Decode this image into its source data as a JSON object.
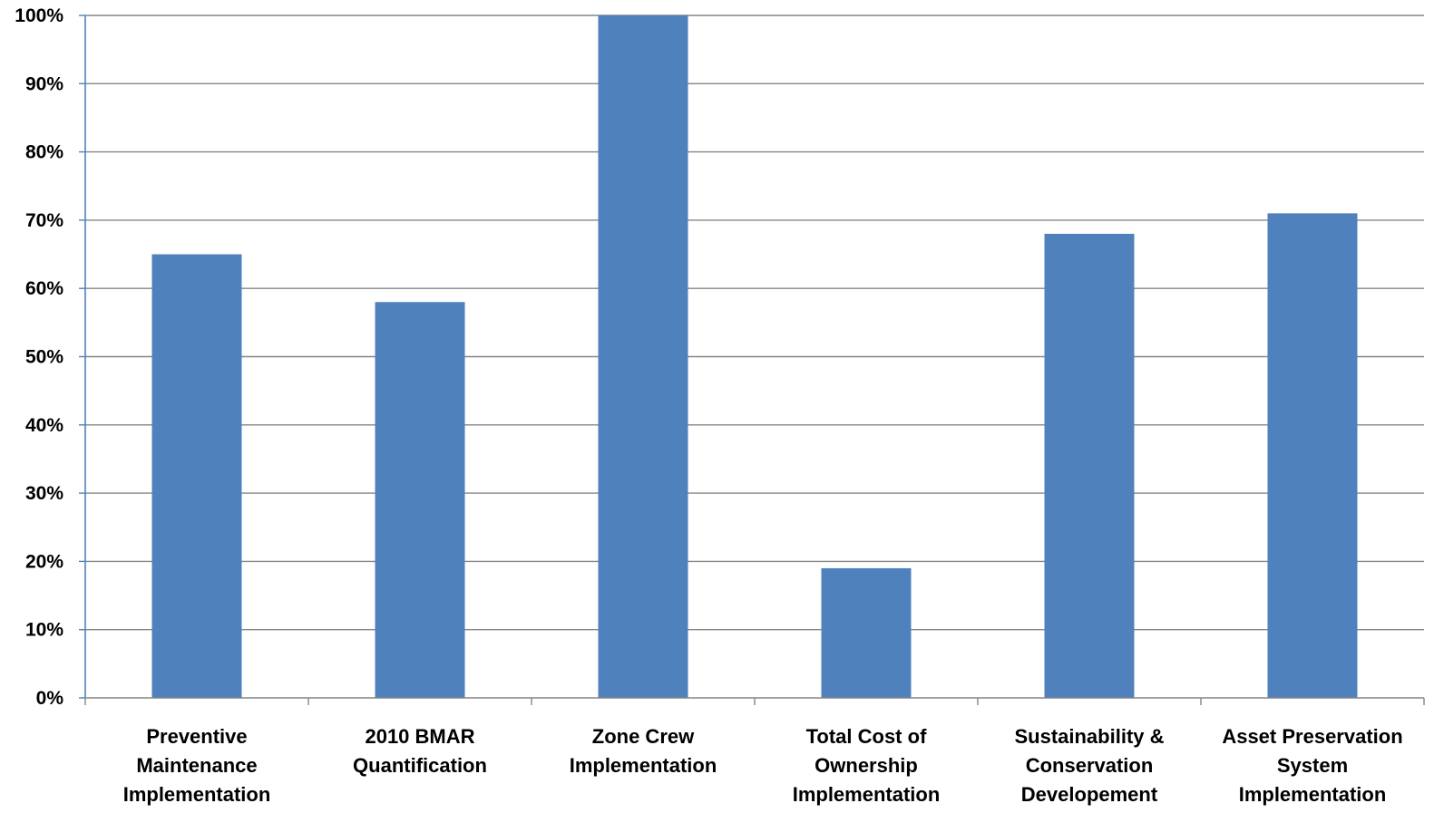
{
  "chart_data": {
    "type": "bar",
    "title": "",
    "xlabel": "",
    "ylabel": "",
    "categories": [
      [
        "Preventive",
        "Maintenance",
        "Implementation"
      ],
      [
        "2010 BMAR",
        "Quantification"
      ],
      [
        "Zone Crew",
        "Implementation"
      ],
      [
        "Total Cost of",
        "Ownership",
        "Implementation"
      ],
      [
        "Sustainability &",
        "Conservation",
        "Developement"
      ],
      [
        "Asset Preservation",
        "System",
        "Implementation"
      ]
    ],
    "values": [
      65,
      58,
      100,
      19,
      68,
      71
    ],
    "ylim": [
      0,
      100
    ],
    "yticks": [
      0,
      10,
      20,
      30,
      40,
      50,
      60,
      70,
      80,
      90,
      100
    ],
    "ytick_labels": [
      "0%",
      "10%",
      "20%",
      "30%",
      "40%",
      "50%",
      "60%",
      "70%",
      "80%",
      "90%",
      "100%"
    ],
    "grid": true,
    "legend": "none",
    "colors": {
      "bar": "#4F81BD",
      "grid": "#868686",
      "axis": "#4F81BD",
      "tick": "#868686"
    }
  }
}
